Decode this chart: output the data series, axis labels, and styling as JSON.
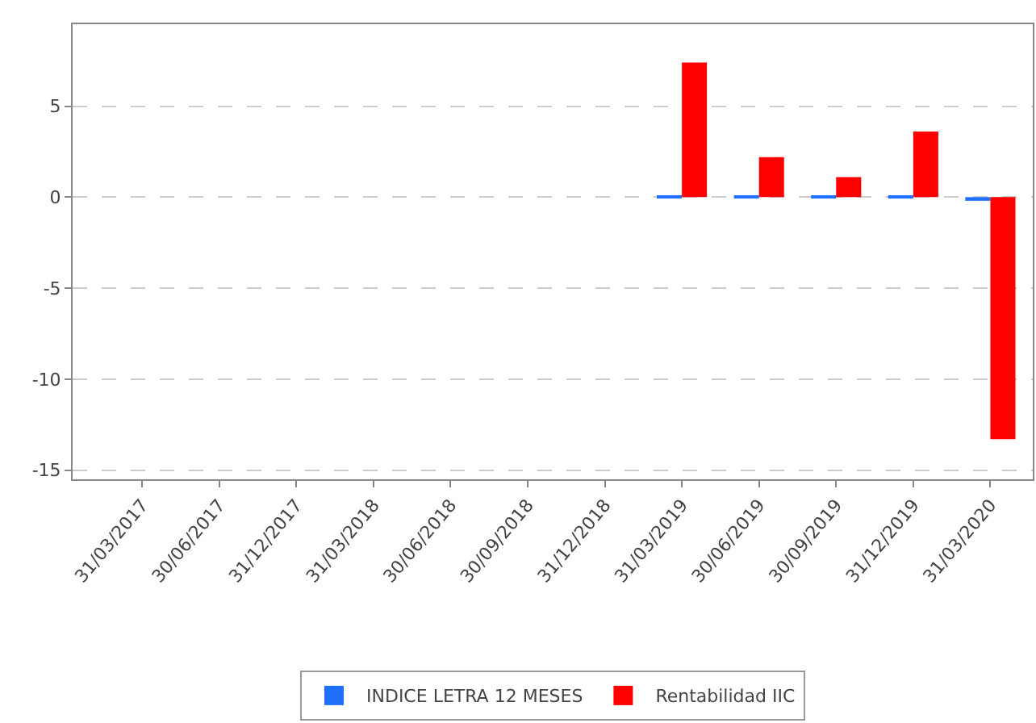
{
  "chart_data": {
    "type": "bar",
    "categories": [
      "31/03/2017",
      "30/06/2017",
      "31/12/2017",
      "31/03/2018",
      "30/06/2018",
      "30/09/2018",
      "31/12/2018",
      "31/03/2019",
      "30/06/2019",
      "30/09/2019",
      "31/12/2019",
      "31/03/2020"
    ],
    "series": [
      {
        "name": "INDICE LETRA 12 MESES",
        "color": "#1f6fff",
        "values": [
          null,
          null,
          null,
          null,
          null,
          null,
          null,
          0.1,
          0.1,
          0.1,
          0.1,
          -0.2
        ]
      },
      {
        "name": "Rentabilidad IIC",
        "color": "#ff0000",
        "values": [
          null,
          null,
          null,
          null,
          null,
          null,
          null,
          7.4,
          2.2,
          1.1,
          3.6,
          -13.3
        ]
      }
    ],
    "ylim": [
      -15.5,
      9.5
    ],
    "yticks": [
      -15,
      -10,
      -5,
      0,
      5
    ],
    "grid": "y",
    "legend": "bottom"
  }
}
